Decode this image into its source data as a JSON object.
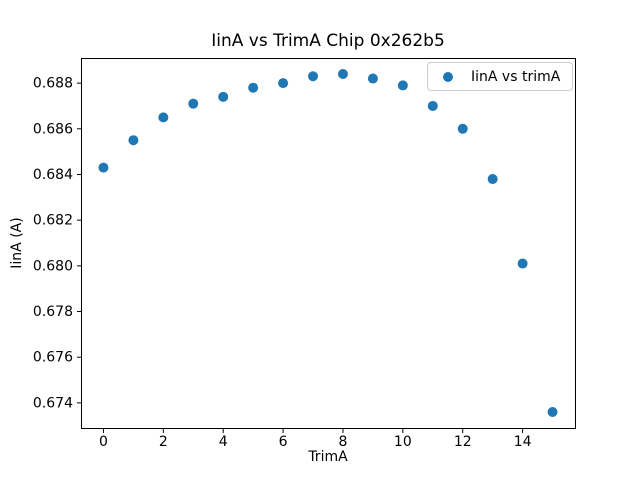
{
  "chart_data": {
    "type": "scatter",
    "title": "IinA vs TrimA Chip 0x262b5",
    "xlabel": "TrimA",
    "ylabel": "IinA (A)",
    "legend": {
      "label": "IinA vs trimA",
      "position": "upper right"
    },
    "marker_color": "#1f77b4",
    "axis_color": "#000000",
    "x": [
      0,
      1,
      2,
      3,
      4,
      5,
      6,
      7,
      8,
      9,
      10,
      11,
      12,
      13,
      14,
      15
    ],
    "y": [
      0.6843,
      0.6855,
      0.6865,
      0.6871,
      0.6874,
      0.6878,
      0.688,
      0.6883,
      0.6884,
      0.6882,
      0.6879,
      0.687,
      0.686,
      0.6838,
      0.6801,
      0.6736
    ],
    "xlim": [
      -0.75,
      15.75
    ],
    "ylim": [
      0.6729,
      0.6891
    ],
    "xticks": [
      0,
      2,
      4,
      6,
      8,
      10,
      12,
      14
    ],
    "yticks": [
      0.674,
      0.676,
      0.678,
      0.68,
      0.682,
      0.684,
      0.686,
      0.688
    ],
    "ytick_decimals": 3,
    "grid": false
  }
}
